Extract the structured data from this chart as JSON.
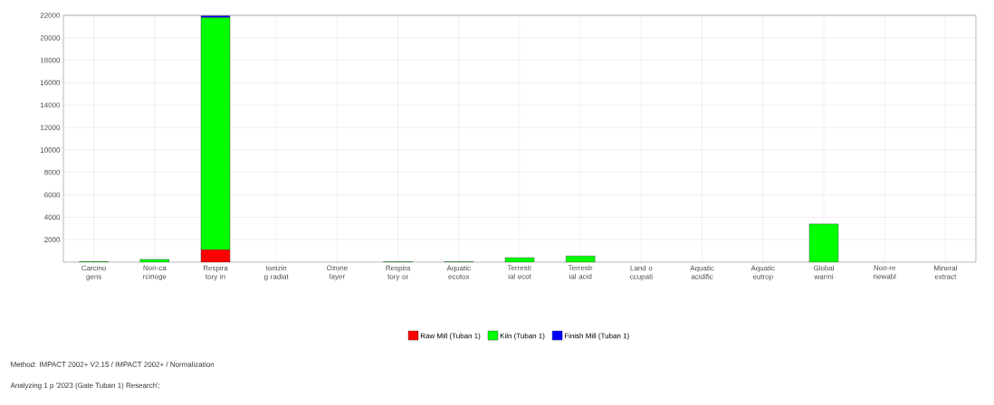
{
  "chart_data": {
    "type": "bar",
    "stacked": true,
    "categories": [
      "Carcino gens",
      "Non-ca rcinoge",
      "Respira tory in",
      "Ionizin g radiat",
      "Ozone layer",
      "Respira tory or",
      "Aquatic ecotox",
      "Terrestr ial ecot",
      "Terrestr ial acid",
      "Land o ccupati",
      "Aquatic acidific",
      "Aquatic eutrop",
      "Global warmi",
      "Non-re newabl",
      "Mineral extract"
    ],
    "series": [
      {
        "name": "Raw Mill (Tuban 1)",
        "color": "#ff0000",
        "values": [
          0,
          0,
          1100,
          0,
          0,
          0,
          0,
          0,
          0,
          0,
          0,
          0,
          0,
          0,
          0
        ]
      },
      {
        "name": "Kiln (Tuban 1)",
        "color": "#00ff00",
        "values": [
          50,
          250,
          20700,
          0,
          0,
          40,
          40,
          400,
          550,
          0,
          0,
          0,
          3400,
          0,
          0
        ]
      },
      {
        "name": "Finish Mill (Tuban 1)",
        "color": "#0000ff",
        "values": [
          0,
          0,
          150,
          0,
          0,
          0,
          0,
          0,
          0,
          0,
          0,
          0,
          0,
          0,
          0
        ]
      }
    ],
    "ylim": [
      0,
      22000
    ],
    "yticks": [
      2000,
      4000,
      6000,
      8000,
      10000,
      12000,
      14000,
      16000,
      18000,
      20000,
      22000
    ],
    "grid": true,
    "legend": "bottom",
    "annotations": [
      "Method: IMPACT 2002+ V2.15 / IMPACT 2002+ / Normalization",
      "Analyzing 1 p '2023 (Gate Tuban 1) Research';"
    ]
  }
}
